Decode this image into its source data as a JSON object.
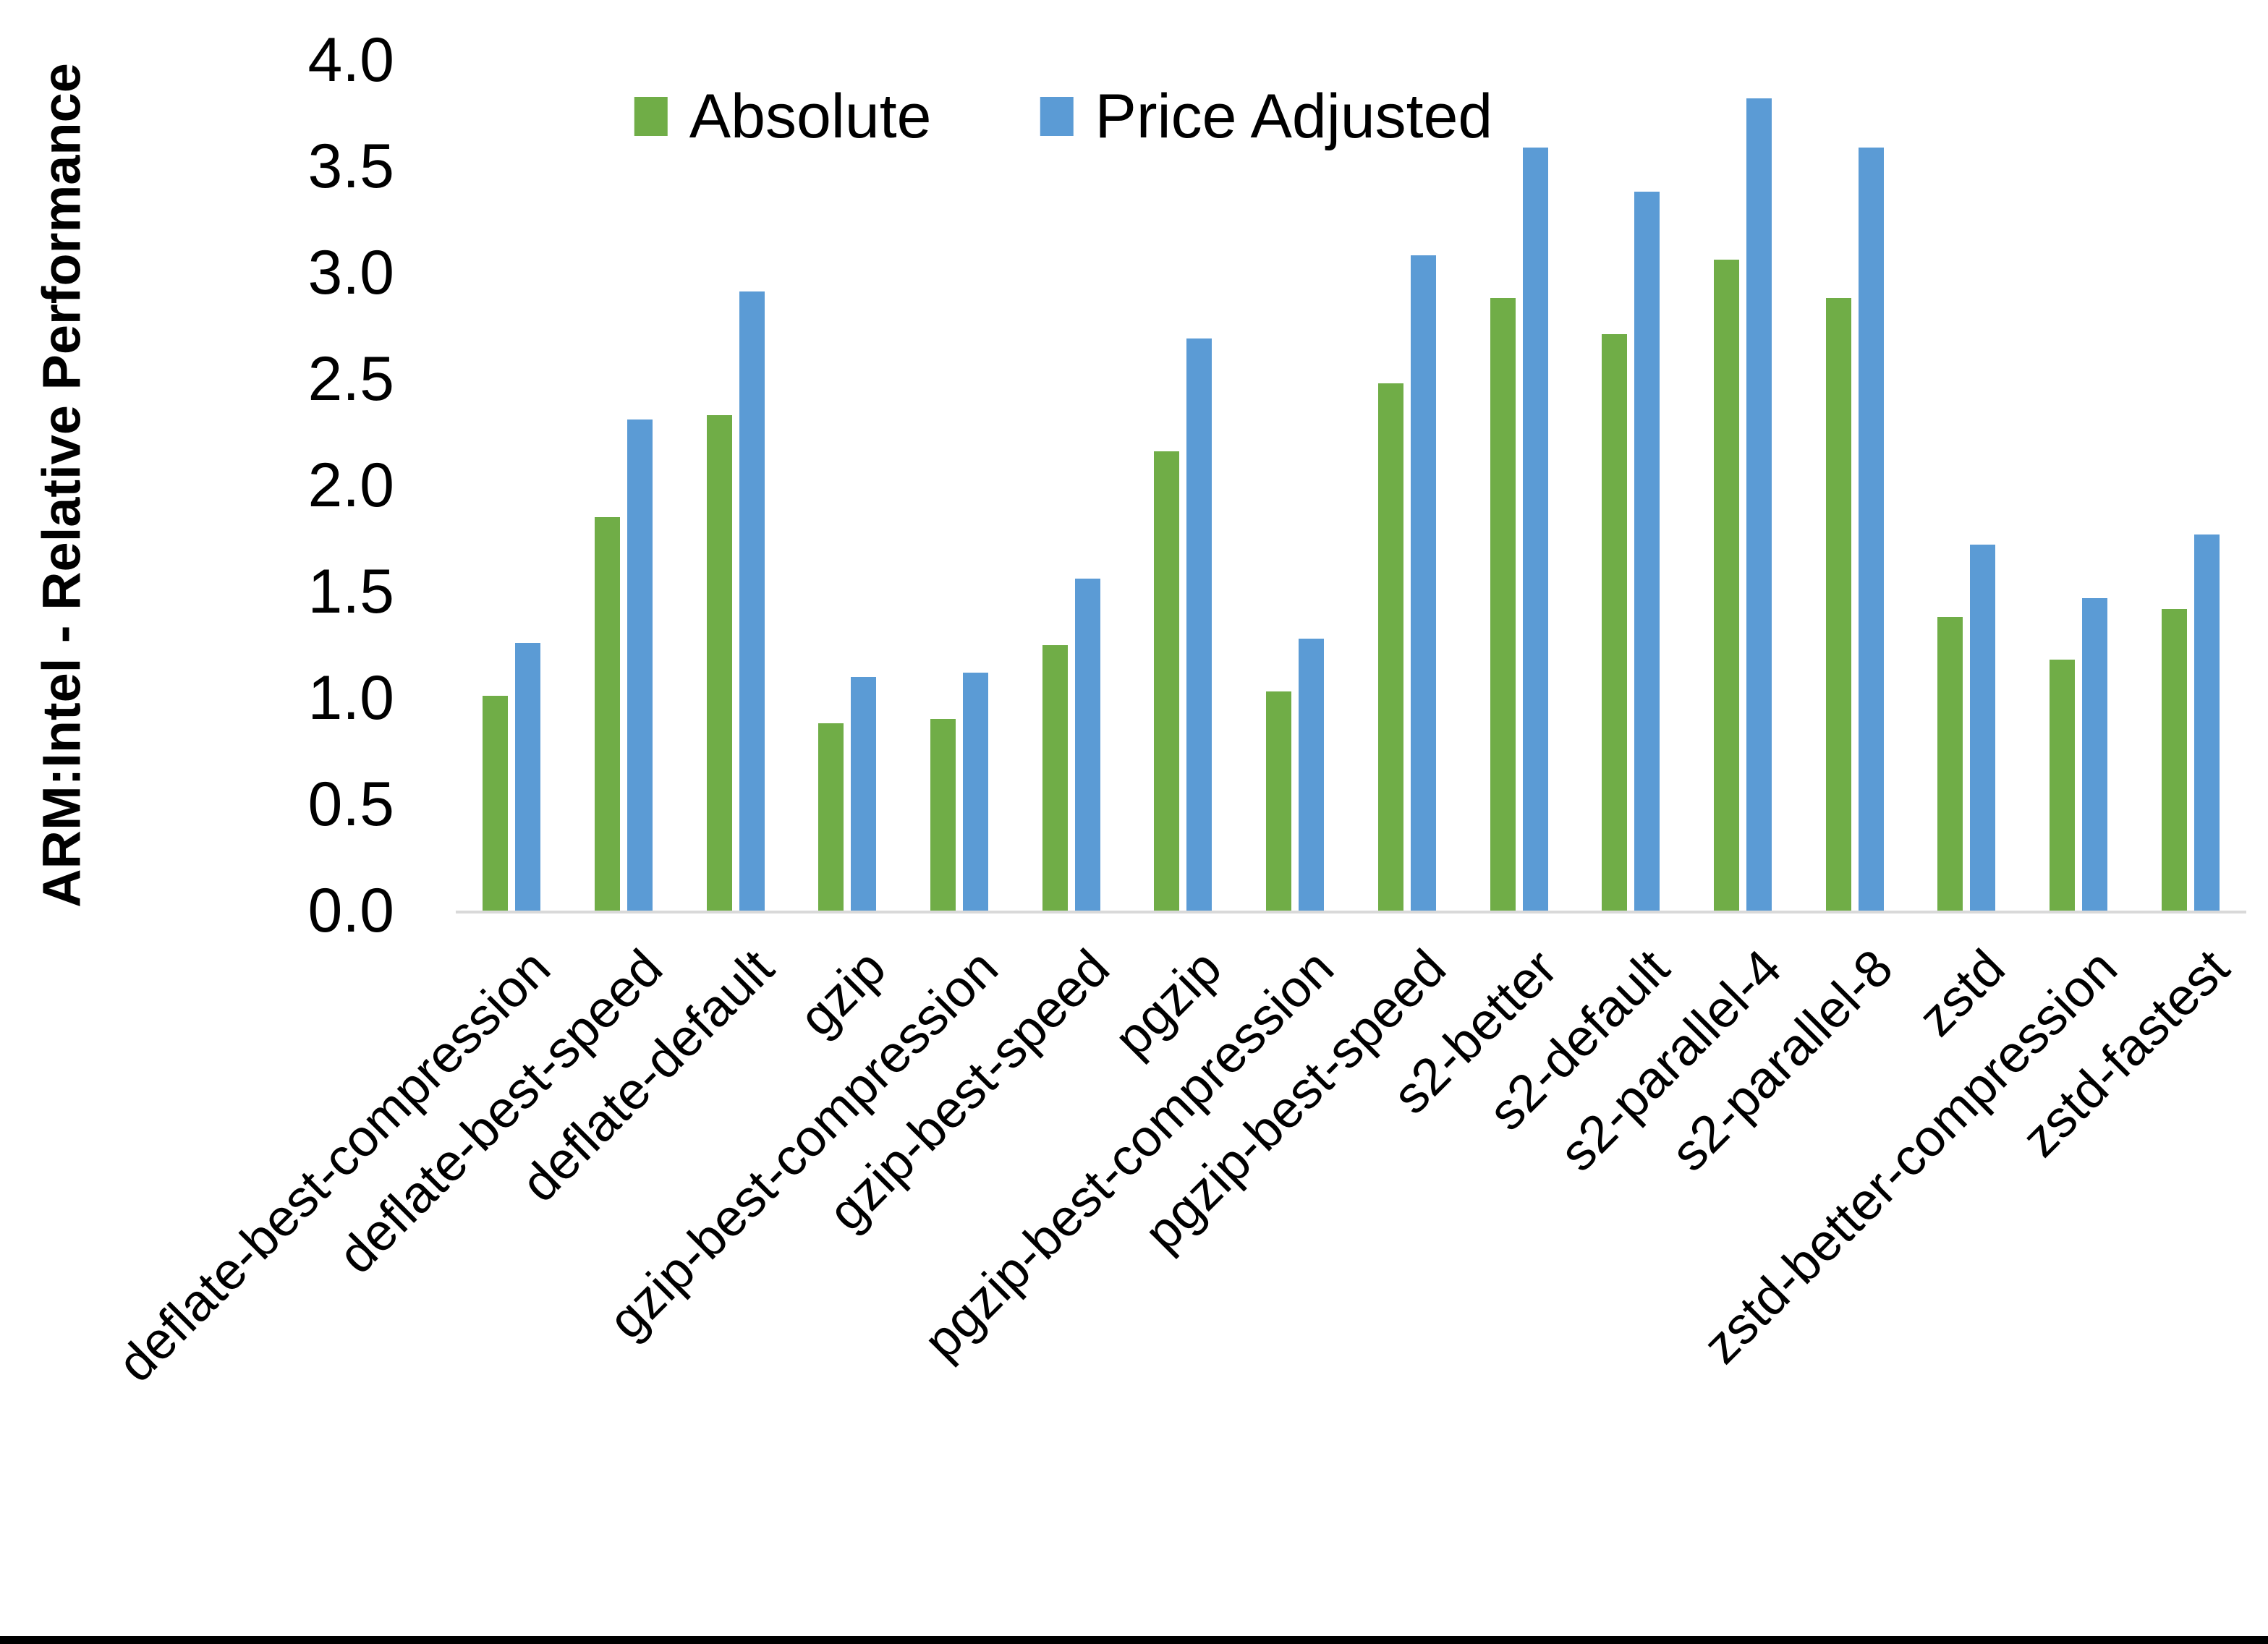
{
  "figure": {
    "ylabel": "ARM:Intel - Relative Performance",
    "background": "#FFFFFF",
    "bottom_border_color": "#000000",
    "axis_line_color": "#D9D9D9"
  },
  "chart_data": {
    "type": "bar",
    "title": "",
    "xlabel": "",
    "ylabel": "ARM:Intel - Relative Performance",
    "ylim": [
      0.0,
      4.0
    ],
    "ytick_step": 0.5,
    "yticks": [
      "0.0",
      "0.5",
      "1.0",
      "1.5",
      "2.0",
      "2.5",
      "3.0",
      "3.5",
      "4.0"
    ],
    "grid": false,
    "legend_position": "top-center",
    "categories": [
      "deflate-best-compression",
      "deflate-best-speed",
      "deflate-default",
      "gzip",
      "gzip-best-compression",
      "gzip-best-speed",
      "pgzip",
      "pgzip-best-compression",
      "pgzip-best-speed",
      "s2-better",
      "s2-default",
      "s2-parallel-4",
      "s2-parallel-8",
      "zstd",
      "zstd-better-compression",
      "zstd-fastest"
    ],
    "series": [
      {
        "name": "Absolute",
        "color": "#70AD47",
        "values": [
          1.01,
          1.85,
          2.33,
          0.88,
          0.9,
          1.25,
          2.16,
          1.03,
          2.48,
          2.88,
          2.71,
          3.06,
          2.88,
          1.38,
          1.18,
          1.42
        ]
      },
      {
        "name": "Price Adjusted",
        "color": "#5B9BD5",
        "values": [
          1.26,
          2.31,
          2.91,
          1.1,
          1.12,
          1.56,
          2.69,
          1.28,
          3.08,
          3.59,
          3.38,
          3.82,
          3.59,
          1.72,
          1.47,
          1.77
        ]
      }
    ]
  }
}
